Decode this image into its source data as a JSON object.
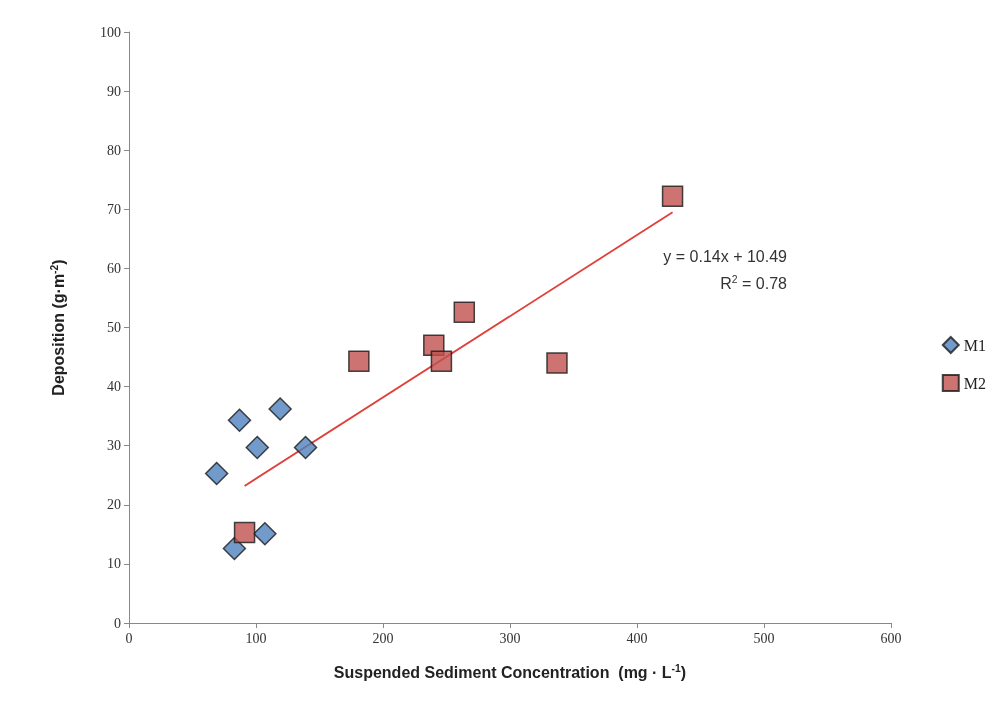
{
  "chart_data": {
    "type": "scatter",
    "xlabel": "Suspended Sediment Concentration  (mg · L$^{-1}$)",
    "ylabel": "Deposition (g·m$^{-2}$)",
    "xlim": [
      0,
      600
    ],
    "xticks": [
      0,
      100,
      200,
      300,
      400,
      500,
      600
    ],
    "ylim": [
      0,
      100
    ],
    "yticks": [
      0,
      10,
      20,
      30,
      40,
      50,
      60,
      70,
      80,
      90,
      100
    ],
    "grid": false,
    "legend": "right",
    "annotations": [
      "y = 0.14x + 10.49",
      "R$^{2}$ = 0.78"
    ],
    "series": [
      {
        "name": "M1",
        "color": "#4f81bd",
        "marker": "diamond",
        "x": [
          69,
          87,
          119,
          101,
          139,
          83,
          107
        ],
        "values": [
          25.3,
          34.3,
          36.2,
          29.7,
          29.7,
          12.6,
          15.1
        ]
      },
      {
        "name": "M2",
        "color": "#c0504d",
        "marker": "square",
        "x": [
          91,
          181,
          240,
          246,
          264,
          337,
          428
        ],
        "values": [
          15.3,
          44.3,
          47.0,
          44.3,
          52.6,
          44.0,
          72.2
        ]
      },
      {
        "type": "line",
        "color": "#e0403a",
        "marker": "none",
        "x": [
          91,
          428
        ],
        "values": [
          23.2,
          69.5
        ]
      }
    ]
  }
}
